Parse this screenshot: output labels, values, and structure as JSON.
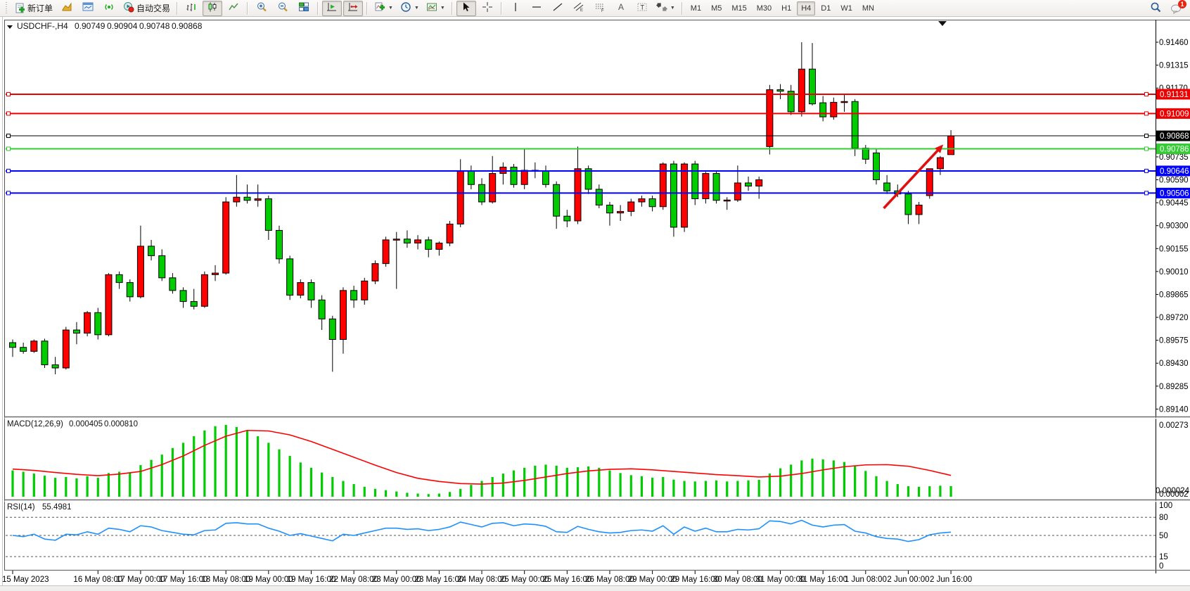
{
  "toolbar": {
    "new_order_label": "新订单",
    "autotrading_label": "自动交易",
    "timeframes": [
      "M1",
      "M5",
      "M15",
      "M30",
      "H1",
      "H4",
      "D1",
      "W1",
      "MN"
    ],
    "active_timeframe": "H4",
    "notification_count": "1"
  },
  "chart": {
    "title_symbol": "USDCHF-,H4",
    "ohlc": {
      "open": "0.90749",
      "high": "0.90904",
      "low": "0.90748",
      "close": "0.90868"
    }
  },
  "chart_data": {
    "type": "candlestick",
    "symbol": "USDCHF",
    "timeframe": "H4",
    "note_color_convention": "red = bullish, green = bearish (Chinese convention)",
    "bull_color": "#FF0000",
    "bear_color": "#00CC00",
    "price_axis": {
      "max": 0.9146,
      "min": 0.8914,
      "step": 0.00145,
      "labels": [
        "0.91460",
        "0.91315",
        "0.91170",
        "0.90735",
        "0.90590",
        "0.90445",
        "0.90300",
        "0.90155",
        "0.90010",
        "0.89865",
        "0.89720",
        "0.89575",
        "0.89430",
        "0.89285",
        "0.89140"
      ]
    },
    "time_labels": [
      {
        "bar": 0,
        "label": "15 May 2023"
      },
      {
        "bar": 8,
        "label": "16 May 08:00"
      },
      {
        "bar": 12,
        "label": "17 May 00:00"
      },
      {
        "bar": 16,
        "label": "17 May 16:00"
      },
      {
        "bar": 20,
        "label": "18 May 08:00"
      },
      {
        "bar": 24,
        "label": "19 May 00:00"
      },
      {
        "bar": 28,
        "label": "19 May 16:00"
      },
      {
        "bar": 32,
        "label": "22 May 08:00"
      },
      {
        "bar": 36,
        "label": "23 May 00:00"
      },
      {
        "bar": 40,
        "label": "23 May 16:00"
      },
      {
        "bar": 44,
        "label": "24 May 08:00"
      },
      {
        "bar": 48,
        "label": "25 May 00:00"
      },
      {
        "bar": 52,
        "label": "25 May 16:00"
      },
      {
        "bar": 56,
        "label": "26 May 08:00"
      },
      {
        "bar": 60,
        "label": "29 May 00:00"
      },
      {
        "bar": 64,
        "label": "29 May 16:00"
      },
      {
        "bar": 68,
        "label": "30 May 08:00"
      },
      {
        "bar": 72,
        "label": "31 May 00:00"
      },
      {
        "bar": 76,
        "label": "31 May 16:00"
      },
      {
        "bar": 80,
        "label": "1 Jun 08:00"
      },
      {
        "bar": 84,
        "label": "2 Jun 00:00"
      },
      {
        "bar": 88,
        "label": "2 Jun 16:00"
      }
    ],
    "candles": [
      [
        0.8956,
        0.8958,
        0.8947,
        0.8953
      ],
      [
        0.8953,
        0.8956,
        0.8949,
        0.89505
      ],
      [
        0.89505,
        0.8958,
        0.89495,
        0.8957
      ],
      [
        0.8957,
        0.89585,
        0.894,
        0.8942
      ],
      [
        0.8942,
        0.8947,
        0.8936,
        0.894
      ],
      [
        0.894,
        0.8966,
        0.8939,
        0.8964
      ],
      [
        0.8964,
        0.8969,
        0.8955,
        0.8962
      ],
      [
        0.8962,
        0.8976,
        0.896,
        0.8975
      ],
      [
        0.8975,
        0.8978,
        0.8958,
        0.8961
      ],
      [
        0.8961,
        0.9,
        0.896,
        0.8999
      ],
      [
        0.8999,
        0.9001,
        0.899,
        0.8994
      ],
      [
        0.8994,
        0.8996,
        0.8982,
        0.8985
      ],
      [
        0.8985,
        0.903,
        0.8984,
        0.9017
      ],
      [
        0.9017,
        0.9021,
        0.9008,
        0.9011
      ],
      [
        0.9011,
        0.9015,
        0.8995,
        0.8997
      ],
      [
        0.8997,
        0.9,
        0.8987,
        0.8989
      ],
      [
        0.8989,
        0.8991,
        0.8978,
        0.8982
      ],
      [
        0.8982,
        0.899,
        0.8977,
        0.8979
      ],
      [
        0.8979,
        0.9001,
        0.8978,
        0.8999
      ],
      [
        0.8999,
        0.9005,
        0.8995,
        0.9
      ],
      [
        0.9,
        0.9048,
        0.8999,
        0.9045
      ],
      [
        0.9045,
        0.9062,
        0.9042,
        0.9048
      ],
      [
        0.9048,
        0.9056,
        0.9044,
        0.9046
      ],
      [
        0.9046,
        0.9056,
        0.9042,
        0.9047
      ],
      [
        0.9047,
        0.9049,
        0.9021,
        0.9027
      ],
      [
        0.9027,
        0.903,
        0.9006,
        0.9009
      ],
      [
        0.9009,
        0.9011,
        0.8983,
        0.8986
      ],
      [
        0.8986,
        0.8996,
        0.8984,
        0.8994
      ],
      [
        0.8994,
        0.8996,
        0.8978,
        0.8983
      ],
      [
        0.8983,
        0.8986,
        0.8964,
        0.8971
      ],
      [
        0.8971,
        0.8973,
        0.89376,
        0.8958
      ],
      [
        0.8958,
        0.8991,
        0.8949,
        0.8989
      ],
      [
        0.8989,
        0.8992,
        0.8978,
        0.8983
      ],
      [
        0.8983,
        0.8997,
        0.898,
        0.8995
      ],
      [
        0.8995,
        0.9008,
        0.8993,
        0.9006
      ],
      [
        0.9006,
        0.9023,
        0.9004,
        0.9021
      ],
      [
        0.9021,
        0.9026,
        0.899,
        0.90215
      ],
      [
        0.90215,
        0.9027,
        0.9016,
        0.9019
      ],
      [
        0.9019,
        0.9024,
        0.9015,
        0.9021
      ],
      [
        0.9021,
        0.9023,
        0.901,
        0.9015
      ],
      [
        0.9015,
        0.902,
        0.9011,
        0.9019
      ],
      [
        0.9019,
        0.9033,
        0.9017,
        0.9031
      ],
      [
        0.9031,
        0.9072,
        0.9029,
        0.90645
      ],
      [
        0.90645,
        0.9068,
        0.9053,
        0.9056
      ],
      [
        0.9056,
        0.906,
        0.9043,
        0.9045
      ],
      [
        0.9045,
        0.9074,
        0.9044,
        0.9063
      ],
      [
        0.9063,
        0.907,
        0.9056,
        0.9067
      ],
      [
        0.9067,
        0.9069,
        0.9054,
        0.9056
      ],
      [
        0.9056,
        0.9079,
        0.9053,
        0.9065
      ],
      [
        0.9065,
        0.907,
        0.906,
        0.90648
      ],
      [
        0.90648,
        0.9068,
        0.9054,
        0.9056
      ],
      [
        0.9056,
        0.9058,
        0.9028,
        0.9036
      ],
      [
        0.9036,
        0.904,
        0.9029,
        0.9033
      ],
      [
        0.9033,
        0.908,
        0.9031,
        0.9066
      ],
      [
        0.9066,
        0.9068,
        0.905,
        0.9053
      ],
      [
        0.9053,
        0.9056,
        0.9041,
        0.9043
      ],
      [
        0.9043,
        0.9045,
        0.903,
        0.9038
      ],
      [
        0.9038,
        0.9043,
        0.9033,
        0.9039
      ],
      [
        0.9039,
        0.9047,
        0.9036,
        0.9045
      ],
      [
        0.9045,
        0.9049,
        0.9042,
        0.9047
      ],
      [
        0.9047,
        0.9049,
        0.9039,
        0.9042
      ],
      [
        0.9042,
        0.907,
        0.904,
        0.9069
      ],
      [
        0.9069,
        0.9071,
        0.9023,
        0.9029
      ],
      [
        0.9029,
        0.907,
        0.9026,
        0.9069
      ],
      [
        0.9069,
        0.9071,
        0.9043,
        0.9047
      ],
      [
        0.9047,
        0.9064,
        0.9044,
        0.9063
      ],
      [
        0.9063,
        0.9065,
        0.9044,
        0.9046
      ],
      [
        0.9046,
        0.9048,
        0.904,
        0.90462
      ],
      [
        0.90462,
        0.9068,
        0.9045,
        0.9057
      ],
      [
        0.9057,
        0.9061,
        0.9052,
        0.9055
      ],
      [
        0.9055,
        0.9061,
        0.9047,
        0.9059
      ],
      [
        0.908,
        0.9119,
        0.9075,
        0.9116
      ],
      [
        0.9116,
        0.91195,
        0.911,
        0.9115
      ],
      [
        0.9115,
        0.9119,
        0.91,
        0.9102
      ],
      [
        0.9102,
        0.9146,
        0.9099,
        0.9129
      ],
      [
        0.9129,
        0.91455,
        0.9106,
        0.9107
      ],
      [
        0.91077,
        0.9112,
        0.9096,
        0.90988
      ],
      [
        0.90988,
        0.9111,
        0.9097,
        0.9108
      ],
      [
        0.9108,
        0.9113,
        0.9102,
        0.91085
      ],
      [
        0.91085,
        0.911,
        0.9074,
        0.9079
      ],
      [
        0.9079,
        0.9081,
        0.9069,
        0.9072
      ],
      [
        0.9076,
        0.9079,
        0.9056,
        0.9059
      ],
      [
        0.9057,
        0.9062,
        0.905,
        0.9052
      ],
      [
        0.9052,
        0.9056,
        0.9048,
        0.905
      ],
      [
        0.905,
        0.9052,
        0.9031,
        0.9037
      ],
      [
        0.9037,
        0.9045,
        0.9031,
        0.9043
      ],
      [
        0.9049,
        0.9066,
        0.9047,
        0.9066
      ],
      [
        0.9066,
        0.9074,
        0.9062,
        0.9073
      ],
      [
        0.90749,
        0.90904,
        0.90748,
        0.90868
      ]
    ],
    "hlines": [
      {
        "price": 0.91131,
        "label": "0.91131",
        "color": "#EE0000",
        "width": 2
      },
      {
        "price": 0.91009,
        "label": "0.91009",
        "color": "#EE0000",
        "width": 2
      },
      {
        "price": 0.90868,
        "label": "0.90868",
        "color": "#000000",
        "width": 1
      },
      {
        "price": 0.90786,
        "label": "0.90786",
        "color": "#33CC33",
        "width": 2
      },
      {
        "price": 0.90646,
        "label": "0.90646",
        "color": "#0000FF",
        "width": 2
      },
      {
        "price": 0.90506,
        "label": "0.90506",
        "color": "#0000FF",
        "width": 2
      }
    ],
    "current_price": "0.90868",
    "arrow": {
      "from_bar": 81.7,
      "from_price": 0.9041,
      "to_bar": 87.1,
      "to_price": 0.908,
      "color": "#E01010"
    },
    "macd": {
      "label": "MACD(12,26,9)",
      "value_main": "0.000405",
      "value_signal": "0.000810",
      "axis_max_label": "0.00273",
      "axis_min_labels": [
        "0.00002",
        "0.000024"
      ],
      "max": 0.00273,
      "hist_unit": 1e-05,
      "hist_color": "#00CC00",
      "signal_color": "#FF0000",
      "hist": [
        100,
        95,
        88,
        80,
        72,
        75,
        70,
        78,
        72,
        90,
        95,
        92,
        120,
        140,
        160,
        185,
        205,
        230,
        252,
        268,
        273,
        265,
        250,
        230,
        205,
        180,
        155,
        130,
        110,
        92,
        75,
        60,
        48,
        38,
        30,
        25,
        20,
        15,
        12,
        10,
        12,
        18,
        30,
        45,
        60,
        75,
        88,
        100,
        110,
        118,
        122,
        118,
        110,
        112,
        115,
        110,
        100,
        90,
        82,
        78,
        72,
        75,
        65,
        60,
        58,
        60,
        62,
        58,
        60,
        62,
        64,
        88,
        108,
        122,
        138,
        145,
        142,
        138,
        132,
        118,
        98,
        78,
        60,
        48,
        40,
        38,
        40,
        42,
        40.5
      ],
      "signal_step2": [
        105,
        100,
        92,
        85,
        80,
        86,
        96,
        122,
        155,
        195,
        230,
        252,
        250,
        235,
        210,
        180,
        150,
        120,
        92,
        70,
        58,
        50,
        48,
        52,
        62,
        75,
        88,
        98,
        104,
        106,
        102,
        96,
        90,
        84,
        80,
        75,
        78,
        88,
        102,
        114,
        121,
        122,
        116,
        100,
        81
      ]
    },
    "rsi": {
      "label": "RSI(14)",
      "value": "55.4981",
      "color": "#1E90FF",
      "levels": [
        80,
        50,
        15
      ],
      "axis_labels": [
        "100",
        "80",
        "50",
        "15",
        "0"
      ],
      "series": [
        50,
        48,
        52,
        44,
        42,
        52,
        51,
        56,
        52,
        62,
        60,
        56,
        66,
        64,
        58,
        55,
        52,
        51,
        58,
        59,
        70,
        71,
        69,
        69,
        62,
        57,
        50,
        53,
        49,
        45,
        41,
        52,
        50,
        54,
        58,
        62,
        62,
        60,
        61,
        58,
        60,
        64,
        72,
        68,
        64,
        70,
        71,
        66,
        69,
        68,
        65,
        56,
        55,
        65,
        60,
        56,
        54,
        55,
        58,
        59,
        57,
        66,
        52,
        64,
        57,
        62,
        56,
        56,
        60,
        59,
        61,
        74,
        73,
        69,
        75,
        67,
        64,
        67,
        68,
        57,
        54,
        48,
        45,
        44,
        40,
        43,
        51,
        54,
        55.5
      ]
    }
  }
}
